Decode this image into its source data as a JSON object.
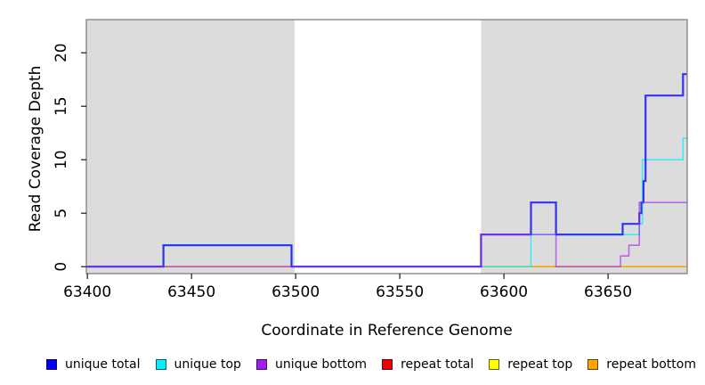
{
  "chart_data": {
    "type": "line",
    "subtype": "step-coverage",
    "title": "",
    "xlabel": "Coordinate in Reference Genome",
    "ylabel": "Read Coverage Depth",
    "xlim": [
      63399.5,
      63688
    ],
    "ylim": [
      -0.65,
      23.1
    ],
    "grid": false,
    "background_color": "#ffffff",
    "shade_color": "#dcdcdc",
    "box_color": "#808080",
    "shaded_regions": [
      {
        "x0": 63399.5,
        "x1": 63499.5
      },
      {
        "x0": 63589,
        "x1": 63688
      }
    ],
    "x_ticks": [
      {
        "label": "63400",
        "value": 63400
      },
      {
        "label": "63450",
        "value": 63450
      },
      {
        "label": "63500",
        "value": 63500
      },
      {
        "label": "63550",
        "value": 63550
      },
      {
        "label": "63600",
        "value": 63600
      },
      {
        "label": "63650",
        "value": 63650
      }
    ],
    "y_ticks": [
      {
        "label": "0",
        "value": 0
      },
      {
        "label": "5",
        "value": 5
      },
      {
        "label": "10",
        "value": 10
      },
      {
        "label": "15",
        "value": 15
      },
      {
        "label": "20",
        "value": 20
      }
    ],
    "series": [
      {
        "name": "repeat top",
        "color": "#FFFF00",
        "width": 1.3,
        "opacity": 0.9,
        "steps": [
          [
            63399.5,
            0
          ],
          [
            63688,
            0
          ]
        ]
      },
      {
        "name": "repeat total",
        "color": "#EE0000",
        "width": 1.3,
        "opacity": 0.8,
        "steps": [
          [
            63399.5,
            0
          ],
          [
            63688,
            0
          ]
        ]
      },
      {
        "name": "repeat bottom",
        "color": "#FFA500",
        "width": 1.5,
        "opacity": 0.9,
        "steps": [
          [
            63399.5,
            0
          ],
          [
            63688,
            0
          ]
        ]
      },
      {
        "name": "unique top",
        "color": "#00EEFF",
        "width": 1.6,
        "opacity": 0.7,
        "steps": [
          [
            63399.5,
            0
          ],
          [
            63436.5,
            2
          ],
          [
            63498,
            0
          ],
          [
            63613,
            3
          ],
          [
            63665,
            4
          ],
          [
            63666.5,
            10
          ],
          [
            63686,
            12
          ],
          [
            63688,
            12
          ]
        ]
      },
      {
        "name": "unique total",
        "color": "#1515F0",
        "width": 2.2,
        "opacity": 0.85,
        "steps": [
          [
            63399.5,
            0
          ],
          [
            63436.5,
            2
          ],
          [
            63498,
            0
          ],
          [
            63589,
            3
          ],
          [
            63613,
            6
          ],
          [
            63625,
            3
          ],
          [
            63657,
            4
          ],
          [
            63665,
            5
          ],
          [
            63666,
            6
          ],
          [
            63667,
            8
          ],
          [
            63668,
            16
          ],
          [
            63686,
            18
          ],
          [
            63688,
            18
          ]
        ]
      },
      {
        "name": "unique bottom",
        "color": "#A020F0",
        "width": 1.6,
        "opacity": 0.62,
        "steps": [
          [
            63399.5,
            0
          ],
          [
            63589,
            3
          ],
          [
            63625,
            0
          ],
          [
            63656,
            1
          ],
          [
            63660,
            2
          ],
          [
            63665,
            6
          ],
          [
            63688,
            6
          ]
        ]
      }
    ],
    "legend": [
      {
        "label": "unique total",
        "color": "#0000F5"
      },
      {
        "label": "unique top",
        "color": "#00F0FF"
      },
      {
        "label": "unique bottom",
        "color": "#A020F0"
      },
      {
        "label": "repeat total",
        "color": "#F00000"
      },
      {
        "label": "repeat top",
        "color": "#FFFF00"
      },
      {
        "label": "repeat bottom",
        "color": "#FFA500"
      }
    ],
    "legend_position": "bottom"
  }
}
